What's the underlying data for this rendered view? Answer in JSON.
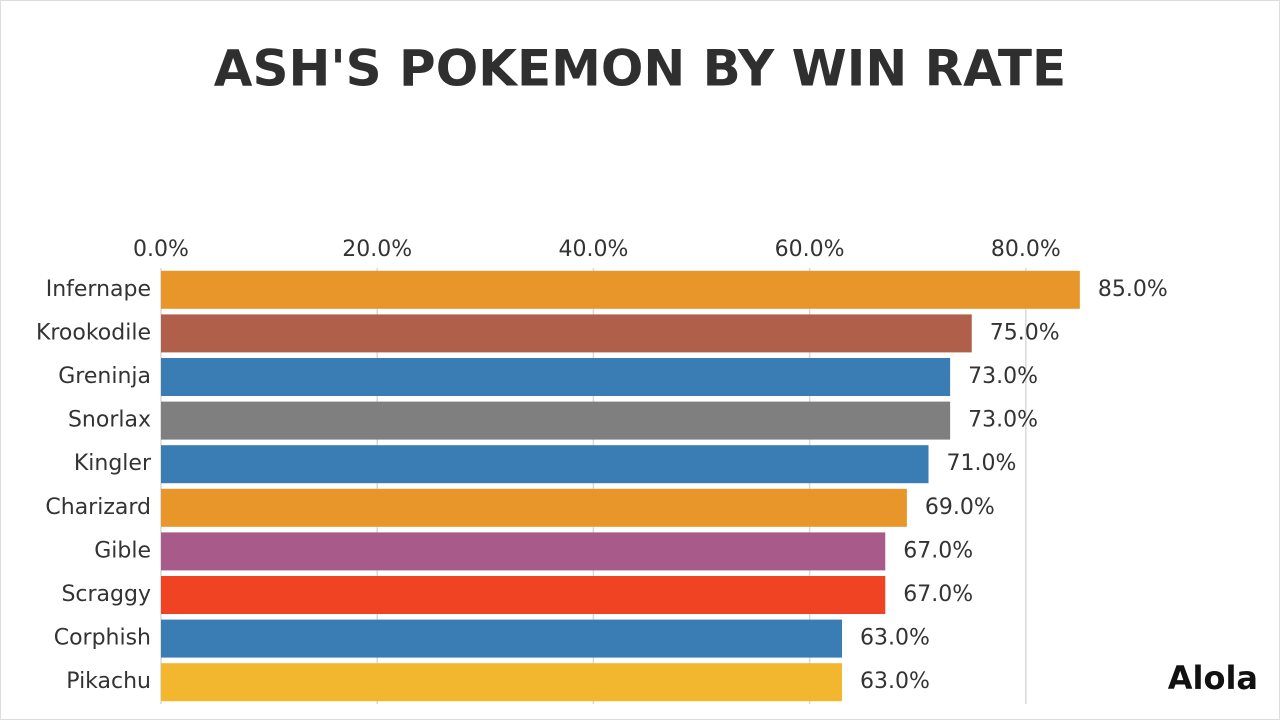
{
  "chart_data": {
    "type": "bar",
    "orientation": "horizontal",
    "title": "ASH'S POKEMON BY WIN RATE",
    "categories": [
      "Infernape",
      "Krookodile",
      "Greninja",
      "Snorlax",
      "Kingler",
      "Charizard",
      "Gible",
      "Scraggy",
      "Corphish",
      "Pikachu"
    ],
    "values": [
      85,
      75,
      73,
      73,
      71,
      69,
      67,
      67,
      63,
      63
    ],
    "value_labels": [
      "85.0%",
      "75.0%",
      "73.0%",
      "73.0%",
      "71.0%",
      "69.0%",
      "67.0%",
      "67.0%",
      "63.0%",
      "63.0%"
    ],
    "colors": [
      "#e8962a",
      "#b0604a",
      "#3a7db5",
      "#7f7f7f",
      "#3a7db5",
      "#e8962a",
      "#a85a8a",
      "#f04323",
      "#3a7db5",
      "#f2b72e"
    ],
    "xlim": [
      0,
      100
    ],
    "xticks": [
      {
        "value": 0,
        "label": "0.0%"
      },
      {
        "value": 20,
        "label": "20.0%"
      },
      {
        "value": 40,
        "label": "40.0%"
      },
      {
        "value": 60,
        "label": "60.0%"
      },
      {
        "value": 80,
        "label": "80.0%"
      }
    ],
    "grid": true,
    "annotation": "Alola"
  }
}
